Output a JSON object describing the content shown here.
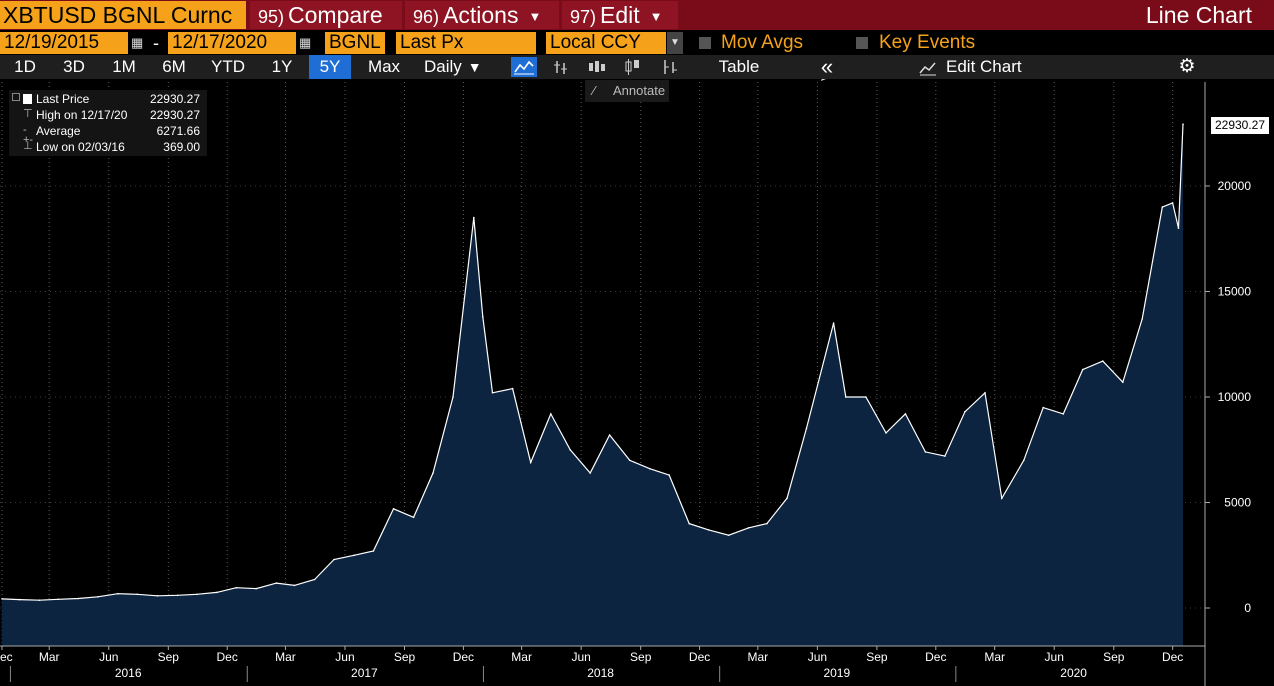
{
  "header": {
    "ticker": "XBTUSD BGNL Curnc",
    "menus": [
      {
        "num": "95)",
        "label": "Compare",
        "caret": ""
      },
      {
        "num": "96)",
        "label": "Actions",
        "caret": "▼"
      },
      {
        "num": "97)",
        "label": "Edit",
        "caret": "▼"
      }
    ],
    "chart_type": "Line Chart"
  },
  "settings": {
    "start_date": "12/19/2015",
    "end_date": "12/17/2020",
    "date_sep": "-",
    "source": "BGNL",
    "field": "Last Px",
    "currency": "Local CCY",
    "mov_avgs": "Mov Avgs",
    "key_events": "Key Events"
  },
  "toolbar": {
    "periods": [
      "1D",
      "3D",
      "1M",
      "6M",
      "YTD",
      "1Y",
      "5Y",
      "Max"
    ],
    "active_period": "5Y",
    "frequency": "Daily",
    "table": "Table",
    "edit_chart": "Edit Chart",
    "annotate": "Annotate"
  },
  "legend": [
    {
      "name": "Last Price",
      "value": "22930.27"
    },
    {
      "name": "High on 12/17/20",
      "value": "22930.27"
    },
    {
      "name": "Average",
      "value": "6271.66"
    },
    {
      "name": "Low on 02/03/16",
      "value": "369.00"
    }
  ],
  "colors": {
    "accent_orange": "#f5a21a",
    "header_red": "#7a0c19",
    "area_fill": "#0c2440",
    "line": "#ffffff",
    "active_tab": "#1f6ed6"
  },
  "chart_data": {
    "type": "area",
    "series": [
      {
        "name": "Last Price",
        "x": [
          "2015-12",
          "2016-01",
          "2016-02",
          "2016-03",
          "2016-04",
          "2016-05",
          "2016-06",
          "2016-07",
          "2016-08",
          "2016-09",
          "2016-10",
          "2016-11",
          "2016-12",
          "2017-01",
          "2017-02",
          "2017-03",
          "2017-04",
          "2017-05",
          "2017-06",
          "2017-07",
          "2017-08",
          "2017-09",
          "2017-10",
          "2017-11",
          "2017-12-17",
          "2017-12-31",
          "2018-01",
          "2018-02",
          "2018-03",
          "2018-04",
          "2018-05",
          "2018-06",
          "2018-07",
          "2018-08",
          "2018-09",
          "2018-10",
          "2018-11",
          "2018-12",
          "2019-01",
          "2019-02",
          "2019-03",
          "2019-04",
          "2019-05",
          "2019-06-26",
          "2019-07",
          "2019-08",
          "2019-09",
          "2019-10",
          "2019-11",
          "2019-12",
          "2020-01",
          "2020-02",
          "2020-03-12",
          "2020-04",
          "2020-05",
          "2020-06",
          "2020-07",
          "2020-08",
          "2020-09",
          "2020-10",
          "2020-11",
          "2020-12-01",
          "2020-12-10",
          "2020-12-17"
        ],
        "values": [
          430,
          400,
          370,
          410,
          450,
          530,
          680,
          650,
          580,
          600,
          650,
          740,
          960,
          920,
          1180,
          1070,
          1350,
          2300,
          2500,
          2700,
          4700,
          4300,
          6400,
          10000,
          18500,
          13800,
          10200,
          10400,
          6900,
          9200,
          7500,
          6400,
          8200,
          7000,
          6600,
          6300,
          4000,
          3700,
          3450,
          3800,
          4000,
          5200,
          8500,
          13500,
          10000,
          10000,
          8300,
          9200,
          7400,
          7200,
          9300,
          10200,
          5200,
          7000,
          9500,
          9200,
          11300,
          11700,
          10700,
          13700,
          19000,
          19200,
          18000,
          22930.27
        ]
      }
    ],
    "x_ticks": [
      "Dec",
      "Mar",
      "Jun",
      "Sep",
      "Dec",
      "Mar",
      "Jun",
      "Sep",
      "Dec",
      "Mar",
      "Jun",
      "Sep",
      "Dec",
      "Mar",
      "Jun",
      "Sep",
      "Dec",
      "Mar",
      "Jun",
      "Sep",
      "Dec"
    ],
    "x_years": [
      "2016",
      "2017",
      "2018",
      "2019",
      "2020"
    ],
    "y_ticks": [
      "0",
      "5000",
      "10000",
      "15000",
      "20000"
    ],
    "ylim": [
      -800,
      25000
    ],
    "last_value_label": "22930.27",
    "grid": "vertical dotted",
    "legend_position": "top-left"
  }
}
